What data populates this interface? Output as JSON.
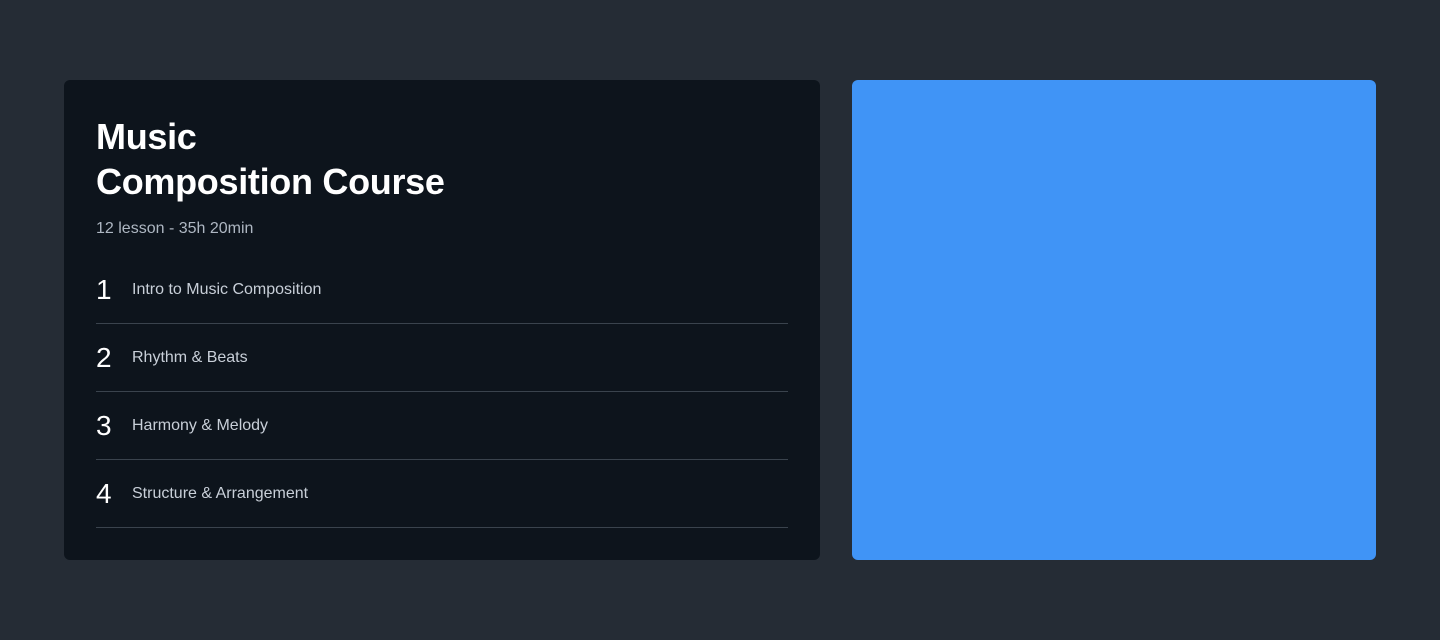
{
  "course": {
    "title_line1": "Music",
    "title_line2": "Composition Course",
    "meta": "12 lesson - 35h 20min",
    "lessons": [
      {
        "number": "1",
        "label": "Intro to Music Composition"
      },
      {
        "number": "2",
        "label": "Rhythm & Beats"
      },
      {
        "number": "3",
        "label": "Harmony & Melody"
      },
      {
        "number": "4",
        "label": "Structure & Arrangement"
      }
    ]
  },
  "colors": {
    "page_background": "#252c35",
    "card_background": "#0d141c",
    "media_panel": "#4094f6",
    "divider": "#3a434d"
  }
}
